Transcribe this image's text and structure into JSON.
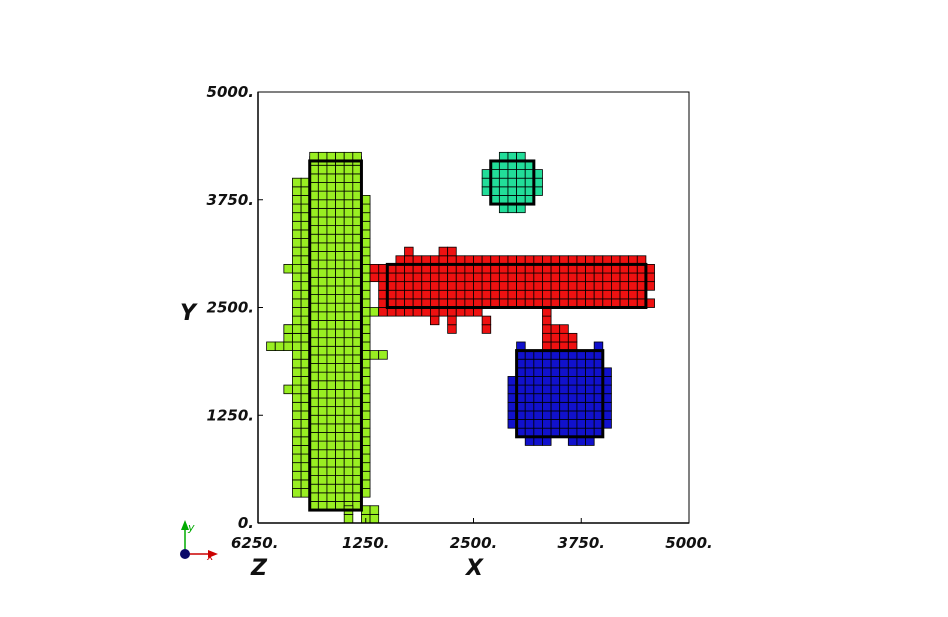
{
  "chart_data": {
    "type": "scatter",
    "title": "",
    "xlabel": "X",
    "ylabel": "Y",
    "zlabel": "Z",
    "xlim": [
      0,
      5000
    ],
    "ylim": [
      0,
      5000
    ],
    "x_ticks": [
      "0.",
      "1250.",
      "2500.",
      "3750.",
      "5000."
    ],
    "y_ticks": [
      "0.",
      "1250.",
      "2500.",
      "3750.",
      "5000."
    ],
    "overlap_tick_label": "6250.",
    "cell_size": 100,
    "triad": {
      "x": "x",
      "y": "y",
      "x_color": "#cc0000",
      "y_color": "#00aa00",
      "origin_color": "#0a0a6a"
    },
    "series": [
      {
        "color": "#99ee22",
        "box": [
          600,
          150,
          1200,
          4200
        ],
        "cells": [
          [
            600,
            4200,
            1200,
            4300
          ],
          [
            400,
            300,
            600,
            4000
          ],
          [
            1200,
            300,
            1300,
            3800
          ],
          [
            1000,
            0,
            1100,
            150
          ],
          [
            1200,
            0,
            1400,
            150
          ],
          [
            100,
            2000,
            400,
            2100
          ],
          [
            300,
            2100,
            400,
            2300
          ],
          [
            300,
            2200,
            500,
            2300
          ],
          [
            1200,
            1900,
            1500,
            2000
          ],
          [
            1200,
            2400,
            1400,
            2500
          ],
          [
            300,
            1500,
            400,
            1600
          ],
          [
            300,
            2900,
            500,
            3000
          ]
        ]
      },
      {
        "color": "#ee1111",
        "box": [
          1500,
          2500,
          4500,
          3000
        ],
        "cells": [
          [
            1400,
            2400,
            1500,
            3000
          ],
          [
            1400,
            2400,
            2600,
            2500
          ],
          [
            1600,
            3000,
            4500,
            3100
          ],
          [
            1700,
            3100,
            1800,
            3200
          ],
          [
            2100,
            3100,
            2300,
            3200
          ],
          [
            4500,
            2700,
            4600,
            3000
          ],
          [
            4500,
            2500,
            4600,
            2600
          ],
          [
            1300,
            2800,
            1400,
            3000
          ],
          [
            2000,
            2300,
            2100,
            2500
          ],
          [
            2200,
            2200,
            2300,
            2400
          ],
          [
            2600,
            2200,
            2700,
            2400
          ],
          [
            3300,
            2200,
            3400,
            2500
          ],
          [
            3400,
            2100,
            3600,
            2300
          ],
          [
            3300,
            2000,
            3700,
            2200
          ],
          [
            3400,
            1900,
            3600,
            2000
          ]
        ]
      },
      {
        "color": "#1111cc",
        "box": [
          3000,
          1000,
          4000,
          2000
        ],
        "cells": [
          [
            2900,
            1100,
            3000,
            1700
          ],
          [
            4000,
            1100,
            4100,
            1800
          ],
          [
            3100,
            900,
            3400,
            1000
          ],
          [
            3600,
            900,
            3900,
            1000
          ],
          [
            3000,
            2000,
            3100,
            2100
          ],
          [
            3900,
            2000,
            4000,
            2100
          ]
        ]
      },
      {
        "color": "#22dd99",
        "box": [
          2700,
          3700,
          3200,
          4200
        ],
        "cells": [
          [
            2600,
            3800,
            2700,
            4100
          ],
          [
            3200,
            3800,
            3300,
            4100
          ],
          [
            2800,
            4200,
            3100,
            4300
          ],
          [
            2800,
            3600,
            3100,
            3700
          ]
        ]
      }
    ]
  }
}
